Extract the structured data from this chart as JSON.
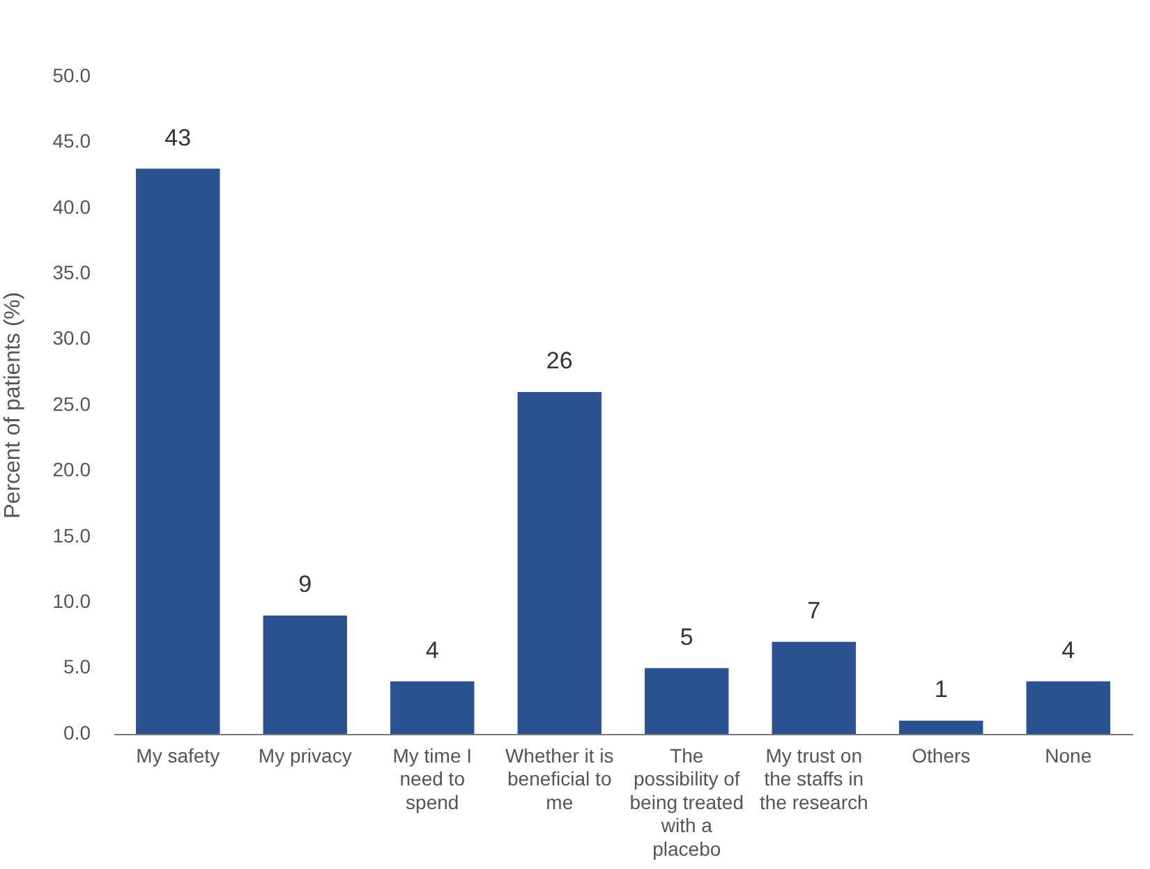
{
  "chart_data": {
    "type": "bar",
    "ylabel": "Percent of patients (%)",
    "categories": [
      "My safety",
      "My privacy",
      "My time I need to spend",
      "Whether it is beneficial to me",
      "The possibility of being treated with a placebo",
      "My trust on the staffs in the research",
      "Others",
      "None"
    ],
    "values": [
      43,
      9,
      4,
      26,
      5,
      7,
      1,
      4
    ],
    "color": "#2d5291",
    "ylim": [
      0,
      50
    ],
    "yticks": [
      {
        "value": 0,
        "label": "0.0"
      },
      {
        "value": 5,
        "label": "5.0"
      },
      {
        "value": 10,
        "label": "10.0"
      },
      {
        "value": 15,
        "label": "15.0"
      },
      {
        "value": 20,
        "label": "20.0"
      },
      {
        "value": 25,
        "label": "25.0"
      },
      {
        "value": 30,
        "label": "30.0"
      },
      {
        "value": 35,
        "label": "35.0"
      },
      {
        "value": 40,
        "label": "40.0"
      },
      {
        "value": 45,
        "label": "45.0"
      },
      {
        "value": 50,
        "label": "50.0"
      }
    ],
    "grid": false,
    "legend": false,
    "data_labels": true
  }
}
